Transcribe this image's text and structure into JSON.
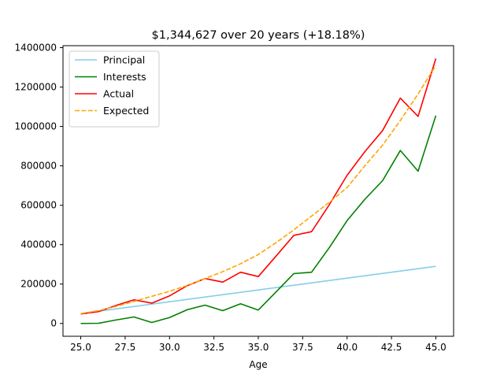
{
  "chart_data": {
    "type": "line",
    "title": "$1,344,627 over 20 years (+18.18%)",
    "xlabel": "Age",
    "ylabel": "",
    "xlim": [
      24.0,
      46.0
    ],
    "ylim": [
      -65000,
      1410000
    ],
    "xticks": [
      25.0,
      27.5,
      30.0,
      32.5,
      35.0,
      37.5,
      40.0,
      42.5,
      45.0
    ],
    "xtick_labels": [
      "25.0",
      "27.5",
      "30.0",
      "32.5",
      "35.0",
      "37.5",
      "40.0",
      "42.5",
      "45.0"
    ],
    "yticks": [
      0,
      200000,
      400000,
      600000,
      800000,
      1000000,
      1200000,
      1400000
    ],
    "ytick_labels": [
      "0",
      "200000",
      "400000",
      "600000",
      "800000",
      "1000000",
      "1200000",
      "1400000"
    ],
    "grid": false,
    "legend_position": "top-left",
    "x": [
      25,
      26,
      27,
      28,
      29,
      30,
      31,
      32,
      33,
      34,
      35,
      36,
      37,
      38,
      39,
      40,
      41,
      42,
      43,
      44,
      45
    ],
    "series": [
      {
        "name": "Principal",
        "color": "#87ceeb",
        "style": "solid",
        "values": [
          50000,
          62000,
          74000,
          86000,
          98000,
          110000,
          122000,
          134000,
          146000,
          158000,
          170000,
          182000,
          194000,
          206000,
          218000,
          230000,
          242000,
          254000,
          266000,
          278000,
          290000
        ]
      },
      {
        "name": "Interests",
        "color": "#008000",
        "style": "solid",
        "values": [
          0,
          1000,
          18000,
          33000,
          5000,
          30000,
          70000,
          93000,
          65000,
          100000,
          68000,
          160000,
          253000,
          260000,
          385000,
          522000,
          630000,
          725000,
          878000,
          773000,
          1055000
        ]
      },
      {
        "name": "Actual",
        "color": "#ff0000",
        "style": "solid",
        "values": [
          48000,
          60000,
          92000,
          120000,
          103000,
          140000,
          192000,
          228000,
          210000,
          260000,
          238000,
          342000,
          447000,
          466000,
          603000,
          752000,
          872000,
          979000,
          1144000,
          1051000,
          1344627
        ]
      },
      {
        "name": "Expected",
        "color": "#ffa500",
        "style": "dashed",
        "values": [
          50000,
          65000,
          87000,
          112000,
          138000,
          163000,
          193000,
          228000,
          263000,
          303000,
          350000,
          410000,
          475000,
          545000,
          615000,
          690000,
          800000,
          905000,
          1030000,
          1165000,
          1310000
        ]
      }
    ]
  }
}
